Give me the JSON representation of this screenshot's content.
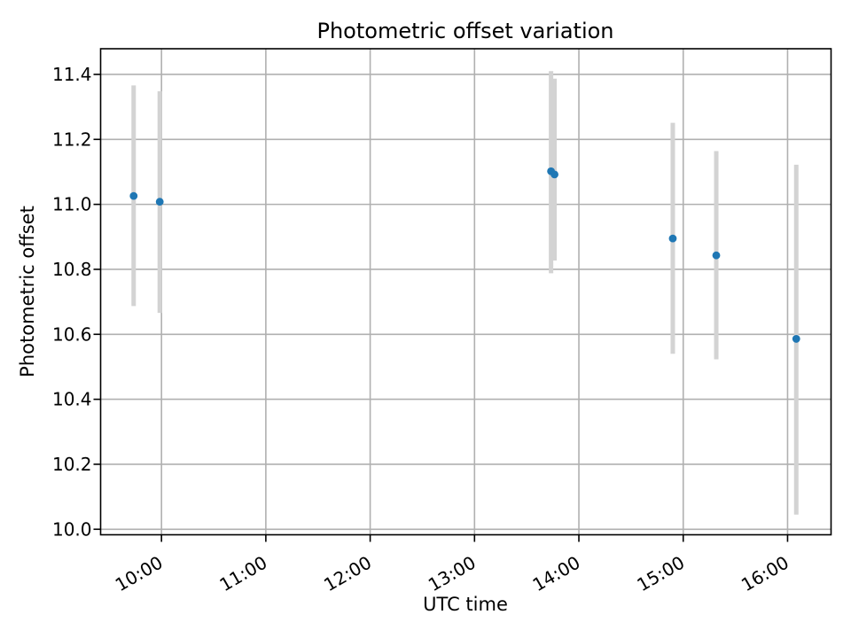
{
  "chart_data": {
    "type": "scatter",
    "title": "Photometric offset variation",
    "xlabel": "UTC time",
    "ylabel": "Photometric offset",
    "grid": true,
    "legend": "none",
    "x_tick_rotation_deg": 30,
    "xlim": [
      "09:25",
      "16:25"
    ],
    "ylim": [
      9.983,
      11.479
    ],
    "x_ticks": [
      "10:00",
      "11:00",
      "12:00",
      "13:00",
      "14:00",
      "15:00",
      "16:00"
    ],
    "y_ticks": [
      "10.0",
      "10.2",
      "10.4",
      "10.6",
      "10.8",
      "11.0",
      "11.2",
      "11.4"
    ],
    "series": [
      {
        "name": "photometric-offset-with-errors",
        "marker": "dot",
        "points": [
          {
            "time": "09:44",
            "value": 11.026,
            "err_low": 10.687,
            "err_high": 11.366
          },
          {
            "time": "09:59",
            "value": 11.008,
            "err_low": 10.666,
            "err_high": 11.348
          },
          {
            "time": "13:44",
            "value": 11.102,
            "err_low": 10.788,
            "err_high": 11.41
          },
          {
            "time": "13:46",
            "value": 11.092,
            "err_low": 10.827,
            "err_high": 11.387
          },
          {
            "time": "14:54",
            "value": 10.895,
            "err_low": 10.54,
            "err_high": 11.251
          },
          {
            "time": "15:19",
            "value": 10.843,
            "err_low": 10.523,
            "err_high": 11.164
          },
          {
            "time": "16:05",
            "value": 10.586,
            "err_low": 10.045,
            "err_high": 11.122
          }
        ]
      }
    ],
    "colors": {
      "marker": "#1f77b4",
      "error_bar": "#d3d3d3",
      "grid": "#b0b0b0",
      "spine": "#000000",
      "tick": "#000000",
      "text": "#000000",
      "background": "#ffffff"
    }
  }
}
